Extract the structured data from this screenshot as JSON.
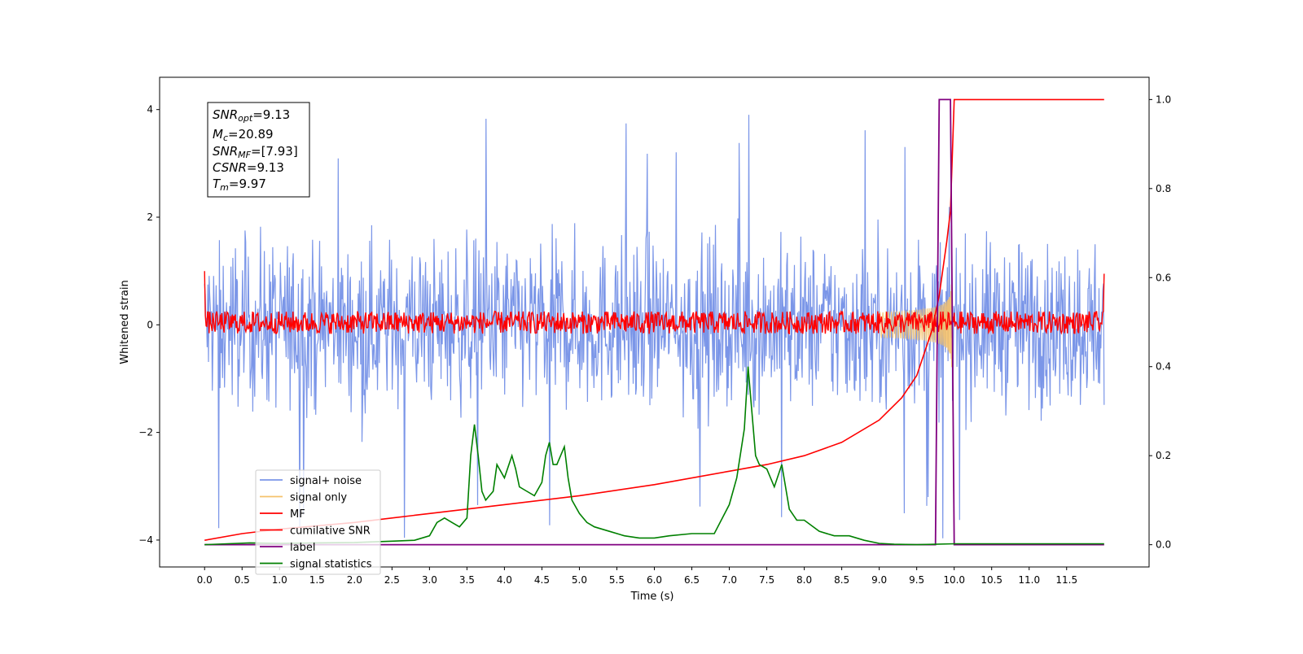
{
  "chart_data": {
    "type": "line",
    "title": "",
    "xlabel": "Time (s)",
    "ylabel": "Whitened strain",
    "xlim": [
      -0.6,
      12.6
    ],
    "ylim": [
      -4.5,
      4.6
    ],
    "y2lim": [
      -0.05,
      1.05
    ],
    "grid": false,
    "legend_position": "lower-left",
    "x_tick_labels": [
      "0.0",
      "0.5",
      "1.0",
      "1.5",
      "2.0",
      "2.5",
      "3.0",
      "3.5",
      "4.0",
      "4.5",
      "5.0",
      "5.5",
      "6.0",
      "6.5",
      "7.0",
      "7.5",
      "8.0",
      "8.5",
      "9.0",
      "9.5",
      "10.0",
      "10.5",
      "11.0",
      "11.5"
    ],
    "y_tick_labels": [
      "4",
      "2",
      "0",
      "−2",
      "−4"
    ],
    "y2_tick_labels": [
      "1.0",
      "0.8",
      "0.6",
      "0.4",
      "0.2",
      "0.0"
    ],
    "stats_box": [
      {
        "var": "SNR",
        "sub": "opt",
        "value": "=9.13"
      },
      {
        "var": "M",
        "sub": "c",
        "value": "=20.89"
      },
      {
        "var": "SNR",
        "sub": "MF",
        "value": "=[7.93]"
      },
      {
        "var": "CSNR",
        "sub": "",
        "value": "=9.13"
      },
      {
        "var": "T",
        "sub": "m",
        "value": "=9.97"
      }
    ],
    "series": [
      {
        "name": "signal+ noise",
        "color": "#7b96e8",
        "axis": "left",
        "kind": "noise",
        "amplitude_range": [
          -4.1,
          4.2
        ],
        "x_range": [
          0,
          12
        ]
      },
      {
        "name": "signal only",
        "color": "#f5c26b",
        "axis": "left",
        "kind": "chirp",
        "merger_time": 9.97,
        "peak_amplitude": 1.0
      },
      {
        "name": "MF",
        "color": "#ff0000",
        "axis": "left",
        "kind": "filter-output",
        "range": [
          -0.2,
          0.3
        ],
        "edge_values": [
          1.0,
          0.95
        ]
      },
      {
        "name": "cumilative SNR",
        "color": "#ff0000",
        "axis": "right",
        "x": [
          0.0,
          0.5,
          1.0,
          2.0,
          3.0,
          4.0,
          5.0,
          6.0,
          7.0,
          7.5,
          8.0,
          8.5,
          9.0,
          9.3,
          9.5,
          9.7,
          9.8,
          9.9,
          9.95,
          10.0,
          12.0
        ],
        "y": [
          0.01,
          0.025,
          0.035,
          0.05,
          0.07,
          0.09,
          0.11,
          0.135,
          0.165,
          0.18,
          0.2,
          0.23,
          0.28,
          0.33,
          0.38,
          0.48,
          0.56,
          0.68,
          0.75,
          1.0,
          1.0
        ]
      },
      {
        "name": "label",
        "color": "#800080",
        "axis": "right",
        "x": [
          0.0,
          9.75,
          9.8,
          9.95,
          10.0,
          12.0
        ],
        "y": [
          0.0,
          0.0,
          1.0,
          1.0,
          0.0,
          0.0
        ]
      },
      {
        "name": "signal statistics",
        "color": "#008000",
        "axis": "right",
        "x": [
          0.0,
          0.3,
          0.6,
          1.0,
          1.5,
          2.0,
          2.5,
          2.8,
          3.0,
          3.1,
          3.2,
          3.3,
          3.4,
          3.5,
          3.55,
          3.6,
          3.65,
          3.7,
          3.75,
          3.8,
          3.85,
          3.9,
          4.0,
          4.1,
          4.15,
          4.2,
          4.3,
          4.4,
          4.5,
          4.55,
          4.6,
          4.65,
          4.7,
          4.8,
          4.85,
          4.9,
          5.0,
          5.1,
          5.2,
          5.4,
          5.6,
          5.8,
          6.0,
          6.2,
          6.5,
          6.8,
          7.0,
          7.1,
          7.2,
          7.25,
          7.3,
          7.35,
          7.4,
          7.5,
          7.6,
          7.7,
          7.8,
          7.9,
          8.0,
          8.2,
          8.4,
          8.6,
          8.8,
          9.0,
          9.2,
          9.5,
          10.0,
          11.0,
          12.0
        ],
        "y": [
          0.0,
          0.002,
          0.004,
          0.003,
          0.004,
          0.005,
          0.008,
          0.01,
          0.02,
          0.05,
          0.06,
          0.05,
          0.04,
          0.06,
          0.2,
          0.27,
          0.2,
          0.12,
          0.1,
          0.11,
          0.12,
          0.18,
          0.15,
          0.2,
          0.17,
          0.13,
          0.12,
          0.11,
          0.14,
          0.2,
          0.23,
          0.18,
          0.18,
          0.22,
          0.15,
          0.1,
          0.07,
          0.05,
          0.04,
          0.03,
          0.02,
          0.015,
          0.015,
          0.02,
          0.025,
          0.025,
          0.09,
          0.15,
          0.26,
          0.4,
          0.3,
          0.2,
          0.18,
          0.17,
          0.13,
          0.18,
          0.08,
          0.055,
          0.055,
          0.03,
          0.02,
          0.02,
          0.01,
          0.003,
          0.001,
          0.0,
          0.002,
          0.002,
          0.002
        ]
      }
    ]
  }
}
